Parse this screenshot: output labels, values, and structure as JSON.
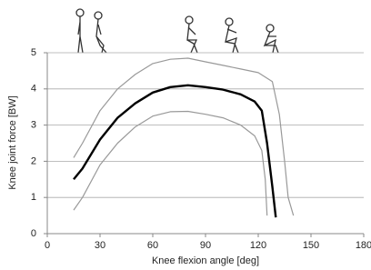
{
  "chart_data": {
    "type": "line",
    "xlabel": "Knee flexion angle [deg]",
    "ylabel": "Knee joint force [BW]",
    "xlim": [
      0,
      180
    ],
    "xticks": [
      0,
      30,
      60,
      90,
      120,
      150,
      180
    ],
    "ylim": [
      0,
      5
    ],
    "yticks": [
      0,
      1,
      2,
      3,
      4,
      5
    ],
    "grid": true,
    "series": [
      {
        "color": "#999999",
        "width": 1.2,
        "x": [
          15,
          20,
          30,
          40,
          50,
          60,
          70,
          80,
          90,
          100,
          110,
          120,
          128,
          132,
          135,
          137,
          140
        ],
        "values": [
          2.1,
          2.5,
          3.4,
          4.0,
          4.4,
          4.7,
          4.82,
          4.85,
          4.75,
          4.65,
          4.55,
          4.45,
          4.2,
          3.3,
          2.0,
          1.0,
          0.5
        ]
      },
      {
        "color": "#999999",
        "width": 1.2,
        "x": [
          15,
          20,
          30,
          40,
          50,
          60,
          70,
          80,
          90,
          100,
          110,
          118,
          122,
          124,
          125
        ],
        "values": [
          0.65,
          1.0,
          1.9,
          2.5,
          2.95,
          3.25,
          3.37,
          3.38,
          3.3,
          3.2,
          3.0,
          2.7,
          2.3,
          1.5,
          0.5
        ]
      },
      {
        "color": "#000000",
        "width": 2.4,
        "x": [
          15,
          20,
          30,
          40,
          50,
          60,
          70,
          80,
          90,
          100,
          110,
          118,
          122,
          125,
          128,
          130
        ],
        "values": [
          1.5,
          1.8,
          2.6,
          3.2,
          3.6,
          3.9,
          4.05,
          4.1,
          4.05,
          3.98,
          3.85,
          3.65,
          3.4,
          2.5,
          1.3,
          0.45
        ]
      }
    ]
  }
}
